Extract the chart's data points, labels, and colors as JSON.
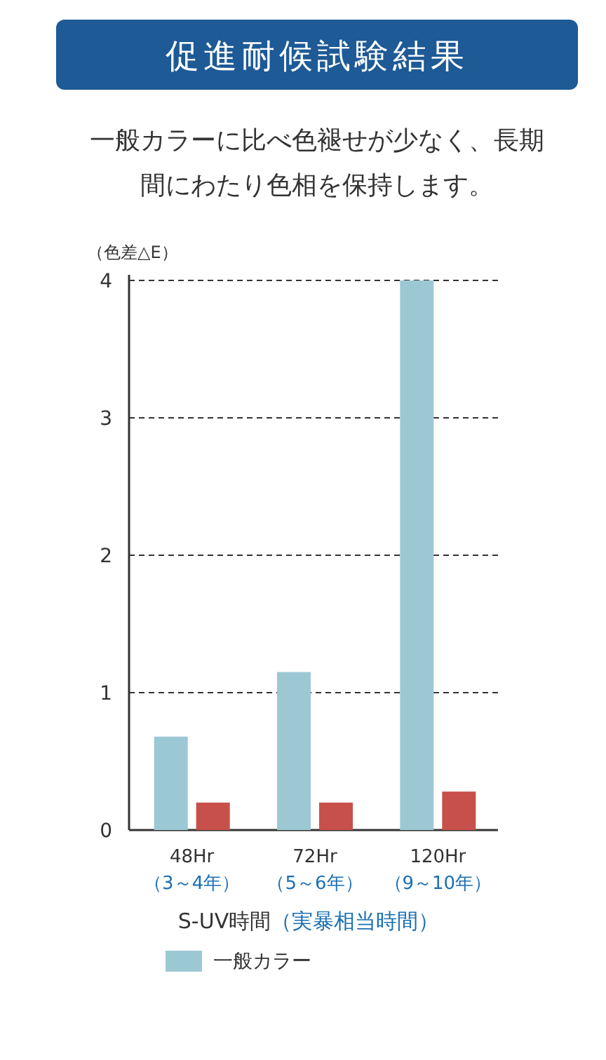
{
  "chart_data": {
    "type": "bar",
    "title": "促進耐候試験結果",
    "subtitle": "一般カラーに比べ色褪せが少なく、長期間にわたり色相を保持します。",
    "ylabel": "（色差△E）",
    "xlabel": "S-UV時間\n（実暴相当時間）",
    "categories": [
      "48Hr\n（3～4年）",
      "72Hr\n（5～6年）",
      "120Hr\n（9～10年）"
    ],
    "series": [
      {
        "name": "一般カラー",
        "color": "#9cc8d4",
        "values": [
          0.68,
          1.15,
          4.0
        ]
      },
      {
        "color": "#c8504a",
        "values": [
          0.2,
          0.2,
          0.28
        ]
      }
    ],
    "ylim": [
      0,
      4
    ],
    "yticks": [
      0,
      1,
      2,
      3,
      4
    ],
    "grid": "y",
    "legend": "bottom"
  }
}
